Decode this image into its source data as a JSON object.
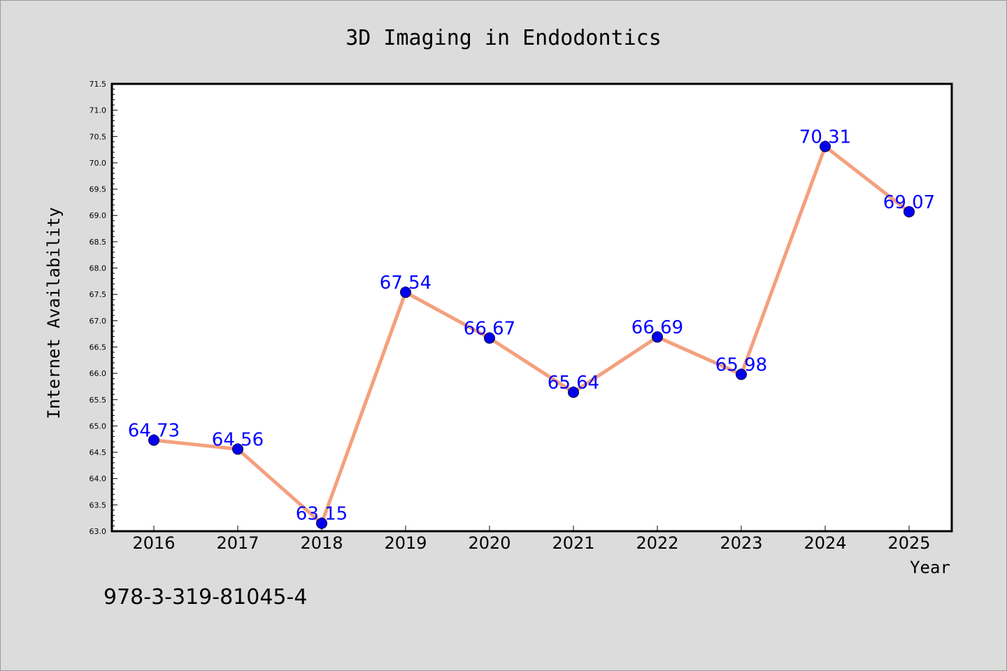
{
  "chart_data": {
    "type": "line",
    "title": "3D Imaging in Endodontics",
    "xlabel": "Year",
    "ylabel": "Internet Availability",
    "categories": [
      "2016",
      "2017",
      "2018",
      "2019",
      "2020",
      "2021",
      "2022",
      "2023",
      "2024",
      "2025"
    ],
    "series": [
      {
        "values": [
          64.73,
          64.56,
          63.15,
          67.54,
          66.67,
          65.64,
          66.69,
          65.98,
          70.31,
          69.07
        ],
        "data_labels": [
          "64.73",
          "64.56",
          "63.15",
          "67.54",
          "66.67",
          "65.64",
          "66.69",
          "65.98",
          "70.31",
          "69.07"
        ]
      }
    ],
    "ylim": [
      63.0,
      71.5
    ],
    "yticks": [
      "63.0",
      "63.5",
      "64.0",
      "64.5",
      "65.0",
      "65.5",
      "66.0",
      "66.5",
      "67.0",
      "67.5",
      "68.0",
      "68.5",
      "69.0",
      "69.5",
      "70.0",
      "70.5",
      "71.0",
      "71.5"
    ],
    "grid": false,
    "legend": "none",
    "colors": {
      "line": "#f4a07e",
      "marker": "#0000ee",
      "data_label": "#0000ff",
      "background": "#dcdcdc",
      "plot_background": "#ffffff"
    }
  },
  "annotation": "978-3-319-81045-4"
}
